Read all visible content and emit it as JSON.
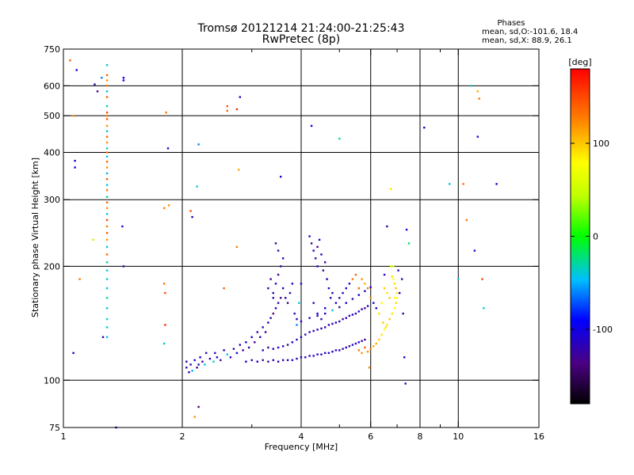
{
  "title_line1": "Tromsø 20121214 21:24:00-21:25:43",
  "title_line2": "RwPretec (8p)",
  "stats": {
    "heading": "Phases",
    "line1": "mean, sd,O:-101.6, 18.4",
    "line2": "mean, sd,X:  88.9, 26.1"
  },
  "colorbar": {
    "label": "[deg]",
    "ticks": [
      {
        "value": 100,
        "label": "100"
      },
      {
        "value": 0,
        "label": "0"
      },
      {
        "value": -100,
        "label": "-100"
      }
    ],
    "range": [
      -180,
      180
    ]
  },
  "chart_data": {
    "type": "scatter",
    "title": "Tromsø 20121214 21:24:00-21:25:43",
    "subtitle": "RwPretec (8p)",
    "xlabel": "Frequency [MHz]",
    "ylabel": "Stationary phase Virtual Height [km]",
    "x_scale": "log",
    "y_scale": "log",
    "xlim": [
      1,
      16
    ],
    "ylim": [
      75,
      750
    ],
    "x_ticks": [
      {
        "value": 1,
        "label": "1"
      },
      {
        "value": 2,
        "label": "2"
      },
      {
        "value": 4,
        "label": "4"
      },
      {
        "value": 6,
        "label": "6"
      },
      {
        "value": 8,
        "label": "8"
      },
      {
        "value": 10,
        "label": "10"
      },
      {
        "value": 16,
        "label": "16"
      }
    ],
    "x_minor": [
      3,
      5,
      7,
      9
    ],
    "y_ticks": [
      {
        "value": 75,
        "label": "75"
      },
      {
        "value": 100,
        "label": "100"
      },
      {
        "value": 200,
        "label": "200"
      },
      {
        "value": 300,
        "label": "300"
      },
      {
        "value": 400,
        "label": "400"
      },
      {
        "value": 500,
        "label": "500"
      },
      {
        "value": 600,
        "label": "600"
      },
      {
        "value": 750,
        "label": "750"
      }
    ],
    "x_grid": [
      2,
      4,
      6,
      8,
      10
    ],
    "y_grid": [
      100,
      200,
      300,
      400,
      500,
      600
    ],
    "grid": true,
    "color_by": "phase [deg]",
    "points": [
      [
        1.04,
        700,
        140
      ],
      [
        1.08,
        660,
        -100
      ],
      [
        1.06,
        500,
        120
      ],
      [
        1.07,
        380,
        -110
      ],
      [
        1.07,
        365,
        -100
      ],
      [
        1.06,
        118,
        -110
      ],
      [
        1.1,
        185,
        130
      ],
      [
        1.2,
        605,
        -120
      ],
      [
        1.22,
        580,
        -130
      ],
      [
        1.25,
        630,
        -60
      ],
      [
        1.26,
        130,
        -120
      ],
      [
        1.19,
        235,
        40
      ],
      [
        1.36,
        75,
        -110
      ],
      [
        1.29,
        680,
        -40
      ],
      [
        1.29,
        640,
        140
      ],
      [
        1.29,
        620,
        120
      ],
      [
        1.29,
        600,
        130
      ],
      [
        1.29,
        580,
        -40
      ],
      [
        1.29,
        560,
        140
      ],
      [
        1.29,
        530,
        -30
      ],
      [
        1.29,
        510,
        150
      ],
      [
        1.29,
        500,
        130
      ],
      [
        1.29,
        490,
        140
      ],
      [
        1.29,
        470,
        120
      ],
      [
        1.29,
        455,
        -40
      ],
      [
        1.29,
        440,
        140
      ],
      [
        1.29,
        425,
        120
      ],
      [
        1.29,
        410,
        -30
      ],
      [
        1.29,
        400,
        130
      ],
      [
        1.29,
        390,
        -40
      ],
      [
        1.29,
        378,
        140
      ],
      [
        1.29,
        365,
        120
      ],
      [
        1.29,
        352,
        -50
      ],
      [
        1.29,
        340,
        140
      ],
      [
        1.29,
        328,
        -40
      ],
      [
        1.29,
        318,
        130
      ],
      [
        1.29,
        305,
        -30
      ],
      [
        1.29,
        295,
        140
      ],
      [
        1.29,
        285,
        120
      ],
      [
        1.29,
        275,
        -40
      ],
      [
        1.29,
        265,
        150
      ],
      [
        1.29,
        255,
        130
      ],
      [
        1.29,
        245,
        140
      ],
      [
        1.29,
        235,
        120
      ],
      [
        1.29,
        225,
        -40
      ],
      [
        1.29,
        215,
        140
      ],
      [
        1.29,
        205,
        -30
      ],
      [
        1.29,
        195,
        -40
      ],
      [
        1.29,
        185,
        -40
      ],
      [
        1.29,
        175,
        -40
      ],
      [
        1.29,
        165,
        -30
      ],
      [
        1.29,
        155,
        -40
      ],
      [
        1.29,
        145,
        -40
      ],
      [
        1.29,
        138,
        -40
      ],
      [
        1.29,
        130,
        -40
      ],
      [
        1.42,
        630,
        -110
      ],
      [
        1.42,
        620,
        -100
      ],
      [
        1.41,
        255,
        -110
      ],
      [
        1.42,
        200,
        -120
      ],
      [
        1.82,
        510,
        130
      ],
      [
        1.84,
        410,
        -110
      ],
      [
        1.8,
        285,
        130
      ],
      [
        1.85,
        290,
        120
      ],
      [
        1.8,
        180,
        130
      ],
      [
        1.81,
        170,
        150
      ],
      [
        1.81,
        140,
        160
      ],
      [
        1.8,
        125,
        -40
      ],
      [
        2.2,
        420,
        -60
      ],
      [
        2.18,
        325,
        -40
      ],
      [
        2.1,
        280,
        150
      ],
      [
        2.12,
        270,
        -110
      ],
      [
        2.15,
        80,
        120
      ],
      [
        2.2,
        85,
        -140
      ],
      [
        2.55,
        175,
        140
      ],
      [
        2.6,
        530,
        140
      ],
      [
        2.6,
        515,
        140
      ],
      [
        2.75,
        520,
        160
      ],
      [
        2.8,
        560,
        -110
      ],
      [
        2.78,
        360,
        110
      ],
      [
        2.75,
        225,
        130
      ],
      [
        2.05,
        108,
        -120
      ],
      [
        2.05,
        112,
        -110
      ],
      [
        2.08,
        105,
        -110
      ],
      [
        2.1,
        110,
        -120
      ],
      [
        2.12,
        106,
        -50
      ],
      [
        2.15,
        113,
        -110
      ],
      [
        2.18,
        108,
        -130
      ],
      [
        2.2,
        110,
        -120
      ],
      [
        2.22,
        115,
        -110
      ],
      [
        2.25,
        112,
        -130
      ],
      [
        2.28,
        110,
        -40
      ],
      [
        2.3,
        118,
        -120
      ],
      [
        2.35,
        114,
        -110
      ],
      [
        2.4,
        112,
        -40
      ],
      [
        2.42,
        118,
        -120
      ],
      [
        2.45,
        115,
        -100
      ],
      [
        2.5,
        113,
        -130
      ],
      [
        2.55,
        120,
        -110
      ],
      [
        2.6,
        117,
        -40
      ],
      [
        2.65,
        115,
        -110
      ],
      [
        2.7,
        121,
        -120
      ],
      [
        2.75,
        118,
        -100
      ],
      [
        2.8,
        124,
        -110
      ],
      [
        2.85,
        120,
        -130
      ],
      [
        2.9,
        126,
        -110
      ],
      [
        2.95,
        122,
        -120
      ],
      [
        3.0,
        130,
        -110
      ],
      [
        3.05,
        126,
        -130
      ],
      [
        3.1,
        134,
        -120
      ],
      [
        3.15,
        130,
        -110
      ],
      [
        3.2,
        138,
        -120
      ],
      [
        3.25,
        134,
        -130
      ],
      [
        3.3,
        142,
        -110
      ],
      [
        3.35,
        146,
        -120
      ],
      [
        3.4,
        150,
        -140
      ],
      [
        3.45,
        155,
        -110
      ],
      [
        3.5,
        160,
        -120
      ],
      [
        3.55,
        165,
        -140
      ],
      [
        2.9,
        112,
        -110
      ],
      [
        3.0,
        113,
        -120
      ],
      [
        3.1,
        112,
        -110
      ],
      [
        3.2,
        113,
        -130
      ],
      [
        3.3,
        112,
        -120
      ],
      [
        3.4,
        113,
        -110
      ],
      [
        3.5,
        112,
        -120
      ],
      [
        3.6,
        113,
        -130
      ],
      [
        3.7,
        113,
        -120
      ],
      [
        3.8,
        113,
        -110
      ],
      [
        3.9,
        114,
        -120
      ],
      [
        4.0,
        115,
        -110
      ],
      [
        4.1,
        115,
        -120
      ],
      [
        4.2,
        116,
        -110
      ],
      [
        4.3,
        116,
        -120
      ],
      [
        4.4,
        117,
        -110
      ],
      [
        4.5,
        117,
        -120
      ],
      [
        4.6,
        118,
        -110
      ],
      [
        4.7,
        118,
        -120
      ],
      [
        4.8,
        119,
        -110
      ],
      [
        4.9,
        120,
        -120
      ],
      [
        5.0,
        120,
        -110
      ],
      [
        5.1,
        121,
        -120
      ],
      [
        5.2,
        122,
        -110
      ],
      [
        5.3,
        123,
        -130
      ],
      [
        5.4,
        124,
        -110
      ],
      [
        5.5,
        125,
        -120
      ],
      [
        5.6,
        126,
        -110
      ],
      [
        5.7,
        127,
        -120
      ],
      [
        5.8,
        128,
        -130
      ],
      [
        3.2,
        120,
        -110
      ],
      [
        3.3,
        122,
        -130
      ],
      [
        3.4,
        121,
        -120
      ],
      [
        3.5,
        122,
        -110
      ],
      [
        3.6,
        123,
        -120
      ],
      [
        3.7,
        124,
        -130
      ],
      [
        3.8,
        126,
        -110
      ],
      [
        3.9,
        128,
        -120
      ],
      [
        4.0,
        130,
        -110
      ],
      [
        4.1,
        132,
        -120
      ],
      [
        4.2,
        134,
        -110
      ],
      [
        4.3,
        135,
        -120
      ],
      [
        4.4,
        136,
        -110
      ],
      [
        4.5,
        137,
        -120
      ],
      [
        4.6,
        138,
        -130
      ],
      [
        4.7,
        140,
        -110
      ],
      [
        4.8,
        141,
        -120
      ],
      [
        4.9,
        142,
        -110
      ],
      [
        5.0,
        143,
        -120
      ],
      [
        5.1,
        145,
        -130
      ],
      [
        5.2,
        146,
        -110
      ],
      [
        5.3,
        148,
        -120
      ],
      [
        5.4,
        149,
        -110
      ],
      [
        5.5,
        150,
        -120
      ],
      [
        5.6,
        152,
        -110
      ],
      [
        5.7,
        154,
        -120
      ],
      [
        5.8,
        155,
        -130
      ],
      [
        5.9,
        157,
        -110
      ],
      [
        3.9,
        140,
        -60
      ],
      [
        4.0,
        143,
        -120
      ],
      [
        4.2,
        146,
        -110
      ],
      [
        4.4,
        148,
        -120
      ],
      [
        4.6,
        150,
        -110
      ],
      [
        4.8,
        153,
        -40
      ],
      [
        5.0,
        156,
        -120
      ],
      [
        5.2,
        160,
        -110
      ],
      [
        5.4,
        164,
        -120
      ],
      [
        5.6,
        168,
        -110
      ],
      [
        5.8,
        172,
        -120
      ],
      [
        6.0,
        176,
        -110
      ],
      [
        3.4,
        170,
        -120
      ],
      [
        3.45,
        180,
        -110
      ],
      [
        3.5,
        190,
        -130
      ],
      [
        3.55,
        200,
        -120
      ],
      [
        3.6,
        210,
        -110
      ],
      [
        3.5,
        220,
        -120
      ],
      [
        3.45,
        230,
        -130
      ],
      [
        3.3,
        175,
        -110
      ],
      [
        3.35,
        185,
        -130
      ],
      [
        3.4,
        165,
        -120
      ],
      [
        3.6,
        175,
        -120
      ],
      [
        3.65,
        165,
        -110
      ],
      [
        3.7,
        160,
        -130
      ],
      [
        3.75,
        170,
        -120
      ],
      [
        3.8,
        180,
        -110
      ],
      [
        3.85,
        150,
        -120
      ],
      [
        3.9,
        145,
        -110
      ],
      [
        3.95,
        160,
        -40
      ],
      [
        4.0,
        180,
        -120
      ],
      [
        4.2,
        240,
        -110
      ],
      [
        4.25,
        230,
        -120
      ],
      [
        4.3,
        220,
        -110
      ],
      [
        4.35,
        210,
        -120
      ],
      [
        4.4,
        225,
        -130
      ],
      [
        4.45,
        235,
        -110
      ],
      [
        4.5,
        215,
        -120
      ],
      [
        4.4,
        200,
        -110
      ],
      [
        4.55,
        195,
        -120
      ],
      [
        4.6,
        205,
        -130
      ],
      [
        4.65,
        185,
        -110
      ],
      [
        4.7,
        175,
        -120
      ],
      [
        4.75,
        165,
        -110
      ],
      [
        4.8,
        170,
        -120
      ],
      [
        4.9,
        160,
        -110
      ],
      [
        5.0,
        165,
        -120
      ],
      [
        5.1,
        170,
        -110
      ],
      [
        5.2,
        175,
        -120
      ],
      [
        5.3,
        180,
        -110
      ],
      [
        5.4,
        185,
        130
      ],
      [
        5.5,
        190,
        140
      ],
      [
        4.3,
        160,
        -120
      ],
      [
        4.4,
        150,
        -110
      ],
      [
        4.5,
        145,
        -120
      ],
      [
        4.6,
        155,
        -110
      ],
      [
        4.25,
        470,
        -100
      ],
      [
        3.55,
        345,
        -110
      ],
      [
        5.6,
        175,
        140
      ],
      [
        5.7,
        185,
        120
      ],
      [
        5.8,
        180,
        110
      ],
      [
        5.9,
        175,
        130
      ],
      [
        6.0,
        165,
        120
      ],
      [
        6.1,
        160,
        -110
      ],
      [
        6.2,
        155,
        -120
      ],
      [
        5.6,
        120,
        130
      ],
      [
        5.7,
        118,
        120
      ],
      [
        5.8,
        122,
        140
      ],
      [
        5.9,
        119,
        120
      ],
      [
        6.0,
        121,
        130
      ],
      [
        6.1,
        123,
        110
      ],
      [
        5.95,
        108,
        120
      ],
      [
        6.2,
        125,
        110
      ],
      [
        6.3,
        128,
        100
      ],
      [
        6.4,
        132,
        90
      ],
      [
        6.5,
        136,
        80
      ],
      [
        6.6,
        140,
        90
      ],
      [
        6.7,
        145,
        100
      ],
      [
        6.8,
        150,
        90
      ],
      [
        6.9,
        155,
        80
      ],
      [
        6.95,
        160,
        90
      ],
      [
        7.0,
        165,
        80
      ],
      [
        7.0,
        170,
        90
      ],
      [
        6.95,
        175,
        100
      ],
      [
        6.9,
        180,
        90
      ],
      [
        6.85,
        185,
        80
      ],
      [
        6.8,
        188,
        90
      ],
      [
        6.5,
        175,
        100
      ],
      [
        6.6,
        170,
        90
      ],
      [
        6.7,
        165,
        100
      ],
      [
        6.4,
        160,
        80
      ],
      [
        6.3,
        150,
        90
      ],
      [
        6.45,
        142,
        100
      ],
      [
        6.55,
        138,
        90
      ],
      [
        6.75,
        200,
        60
      ],
      [
        6.85,
        200,
        70
      ],
      [
        7.05,
        195,
        -110
      ],
      [
        7.2,
        185,
        -120
      ],
      [
        7.1,
        170,
        -110
      ],
      [
        7.25,
        150,
        -120
      ],
      [
        6.5,
        190,
        -110
      ],
      [
        6.6,
        255,
        -120
      ],
      [
        7.4,
        250,
        -110
      ],
      [
        7.5,
        230,
        -20
      ],
      [
        6.75,
        320,
        90
      ],
      [
        7.3,
        115,
        -110
      ],
      [
        7.35,
        98,
        -120
      ],
      [
        6.9,
        165,
        80
      ],
      [
        5.0,
        435,
        -30
      ],
      [
        8.2,
        465,
        -110
      ],
      [
        9.5,
        330,
        -40
      ],
      [
        10.3,
        330,
        130
      ],
      [
        10.5,
        265,
        130
      ],
      [
        11.2,
        440,
        -110
      ],
      [
        10.8,
        600,
        -40
      ],
      [
        11.2,
        580,
        110
      ],
      [
        11.3,
        555,
        130
      ],
      [
        11.0,
        220,
        -110
      ],
      [
        12.5,
        330,
        -110
      ],
      [
        11.5,
        185,
        150
      ],
      [
        11.6,
        155,
        -40
      ],
      [
        10.0,
        185,
        -40
      ]
    ]
  }
}
